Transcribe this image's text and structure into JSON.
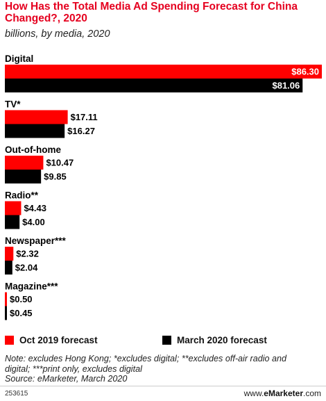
{
  "header": {
    "title": "How Has the Total Media Ad Spending Forecast for China Changed?, 2020",
    "subtitle": "billions, by media, 2020"
  },
  "colors": {
    "oct_2019": "#ff0000",
    "mar_2020": "#000000",
    "title": "#e5001f"
  },
  "chart_data": {
    "type": "bar",
    "orientation": "horizontal",
    "categories": [
      "Digital",
      "TV*",
      "Out-of-home",
      "Radio**",
      "Newspaper***",
      "Magazine***"
    ],
    "series": [
      {
        "name": "Oct 2019 forecast",
        "values": [
          86.3,
          17.11,
          10.47,
          4.43,
          2.32,
          0.5
        ],
        "labels": [
          "$86.30",
          "$17.11",
          "$10.47",
          "$4.43",
          "$2.32",
          "$0.50"
        ]
      },
      {
        "name": "March 2020 forecast",
        "values": [
          81.06,
          16.27,
          9.85,
          4.0,
          2.04,
          0.45
        ],
        "labels": [
          "$81.06",
          "$16.27",
          "$9.85",
          "$4.00",
          "$2.04",
          "$0.45"
        ]
      }
    ],
    "title": "How Has the Total Media Ad Spending Forecast for China Changed?, 2020",
    "subtitle": "billions, by media, 2020",
    "xlim": [
      0,
      86.3
    ],
    "grid": false,
    "legend_placement": "bottom"
  },
  "legend": {
    "oct_label": "Oct 2019 forecast",
    "mar_label": "March 2020 forecast"
  },
  "footer": {
    "note_line1": "Note: excludes Hong Kong; *excludes digital; **excludes off-air radio and",
    "note_line2": "digital; ***print only, excludes digital",
    "source": "Source: eMarketer, March 2020",
    "chart_id": "253615",
    "brand_prefix": "www.",
    "brand_name": "eMarketer",
    "brand_suffix": ".com"
  }
}
